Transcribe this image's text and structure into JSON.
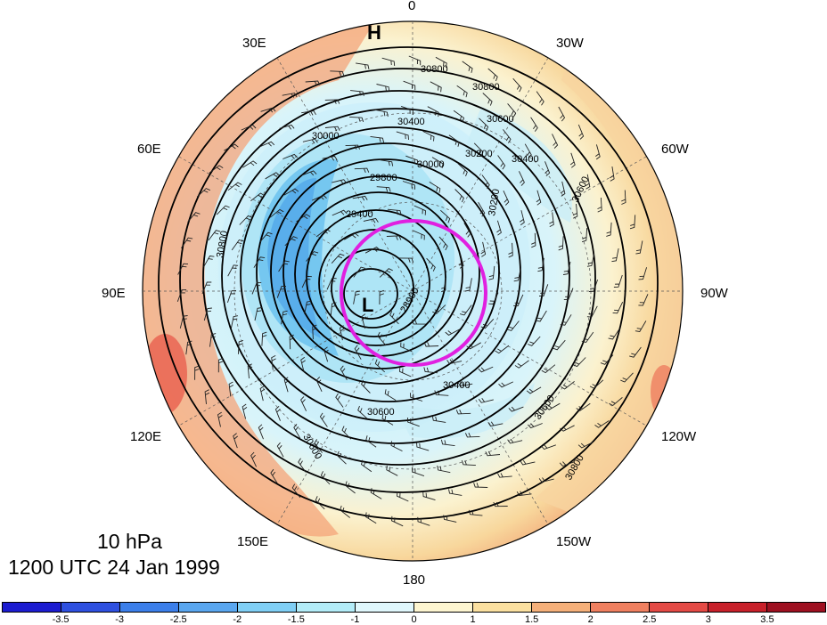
{
  "map": {
    "longitude_labels": [
      "0",
      "30W",
      "60W",
      "90W",
      "120W",
      "150W",
      "180",
      "150E",
      "120E",
      "90E",
      "60E",
      "30E"
    ],
    "pressure_level": "10 hPa",
    "valid_time": "1200 UTC 24 Jan 1999",
    "high_marker": "H",
    "low_marker": "L",
    "contour_labels": [
      "30800",
      "30800",
      "30600",
      "30600",
      "30400",
      "30400",
      "30200",
      "30200",
      "30000",
      "30000",
      "29800",
      "29400",
      "28900",
      "30600",
      "30600",
      "30800",
      "30800",
      "30400",
      "30600"
    ],
    "highlight_circle_color": "#e020e0"
  },
  "colorbar": {
    "tick_labels": [
      "-3.5",
      "-3",
      "-2.5",
      "-2",
      "-1.5",
      "-1",
      "0",
      "1",
      "1.5",
      "2",
      "2.5",
      "3",
      "3.5"
    ],
    "colors": [
      "#1c1cd0",
      "#2e50e0",
      "#3c7fea",
      "#5aa7f0",
      "#80cff5",
      "#b3ecf8",
      "#e0f7fc",
      "#fdf5d0",
      "#fbe0a0",
      "#f5b07a",
      "#f08060",
      "#e44a45",
      "#c8202a",
      "#9e1020"
    ]
  }
}
